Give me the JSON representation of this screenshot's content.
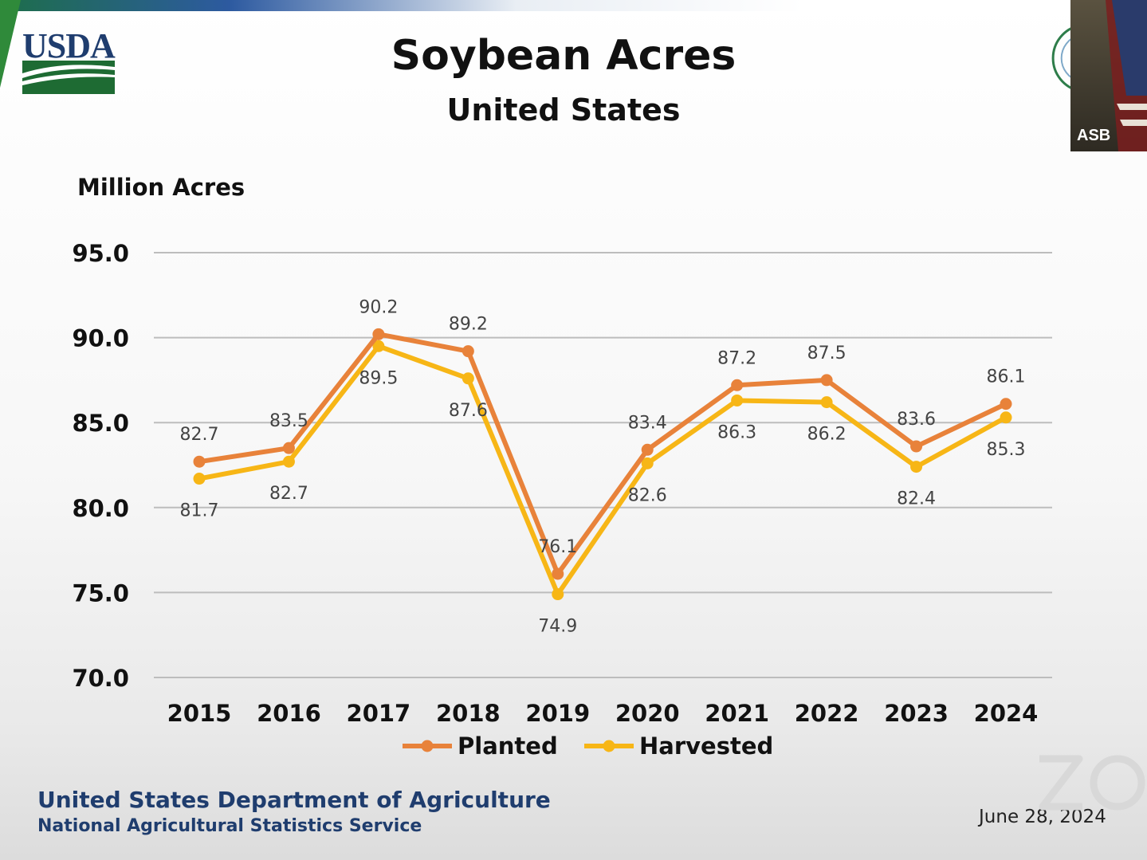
{
  "slide": {
    "title": "Soybean Acres",
    "subtitle": "United States",
    "footer_agency": "United States Department of Agriculture",
    "footer_service": "National Agricultural Statistics Service",
    "date": "June 28, 2024",
    "logo_text": "USDA",
    "video_participant": "ASB",
    "colors": {
      "usda_blue": "#1f3d6e",
      "usda_green": "#1e6b33"
    }
  },
  "chart_data": {
    "type": "line",
    "title": "Soybean Acres",
    "subtitle": "United States",
    "ylabel": "Million Acres",
    "xlabel": "",
    "ylim": [
      70,
      95
    ],
    "yticks": [
      "70.0",
      "75.0",
      "80.0",
      "85.0",
      "90.0",
      "95.0"
    ],
    "grid": true,
    "legend_placement": "bottom",
    "categories": [
      "2015",
      "2016",
      "2017",
      "2018",
      "2019",
      "2020",
      "2021",
      "2022",
      "2023",
      "2024"
    ],
    "series": [
      {
        "name": "Planted",
        "color": "#e8823a",
        "values": [
          82.7,
          83.5,
          90.2,
          89.2,
          76.1,
          83.4,
          87.2,
          87.5,
          83.6,
          86.1
        ],
        "labels": [
          "82.7",
          "83.5",
          "90.2",
          "89.2",
          "76.1",
          "83.4",
          "87.2",
          "87.5",
          "83.6",
          "86.1"
        ]
      },
      {
        "name": "Harvested",
        "color": "#f7b616",
        "values": [
          81.7,
          82.7,
          89.5,
          87.6,
          74.9,
          82.6,
          86.3,
          86.2,
          82.4,
          85.3
        ],
        "labels": [
          "81.7",
          "82.7",
          "89.5",
          "87.6",
          "74.9",
          "82.6",
          "86.3",
          "86.2",
          "82.4",
          "85.3"
        ]
      }
    ]
  }
}
